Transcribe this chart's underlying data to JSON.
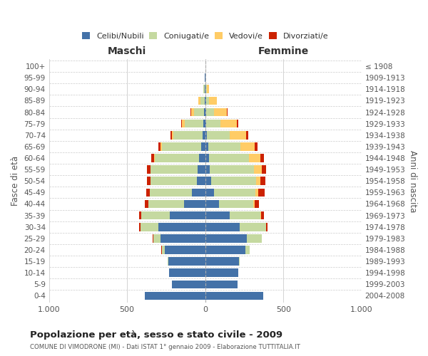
{
  "age_groups": [
    "100+",
    "95-99",
    "90-94",
    "85-89",
    "80-84",
    "75-79",
    "70-74",
    "65-69",
    "60-64",
    "55-59",
    "50-54",
    "45-49",
    "40-44",
    "35-39",
    "30-34",
    "25-29",
    "20-24",
    "15-19",
    "10-14",
    "5-9",
    "0-4"
  ],
  "birth_years": [
    "≤ 1908",
    "1909-1913",
    "1914-1918",
    "1919-1923",
    "1924-1928",
    "1929-1933",
    "1934-1938",
    "1939-1943",
    "1944-1948",
    "1949-1953",
    "1954-1958",
    "1959-1963",
    "1964-1968",
    "1969-1973",
    "1974-1978",
    "1979-1983",
    "1984-1988",
    "1989-1993",
    "1994-1998",
    "1999-2003",
    "2004-2008"
  ],
  "males": {
    "celibi": [
      0,
      1,
      3,
      5,
      10,
      12,
      18,
      28,
      38,
      48,
      55,
      85,
      135,
      225,
      300,
      285,
      260,
      235,
      230,
      215,
      385
    ],
    "coniugati": [
      0,
      1,
      8,
      25,
      60,
      120,
      185,
      250,
      285,
      300,
      295,
      270,
      230,
      185,
      115,
      48,
      18,
      5,
      2,
      0,
      0
    ],
    "vedovi": [
      0,
      0,
      3,
      12,
      20,
      18,
      12,
      8,
      6,
      4,
      2,
      2,
      1,
      0,
      0,
      0,
      0,
      0,
      0,
      0,
      0
    ],
    "divorziati": [
      0,
      0,
      0,
      2,
      3,
      4,
      7,
      14,
      18,
      22,
      22,
      22,
      22,
      13,
      7,
      3,
      2,
      0,
      0,
      0,
      0
    ]
  },
  "females": {
    "nubili": [
      0,
      0,
      2,
      4,
      5,
      8,
      12,
      18,
      24,
      30,
      40,
      58,
      88,
      155,
      220,
      265,
      255,
      215,
      210,
      205,
      370
    ],
    "coniugate": [
      0,
      1,
      7,
      22,
      50,
      90,
      145,
      205,
      255,
      280,
      285,
      265,
      220,
      200,
      168,
      95,
      28,
      5,
      2,
      0,
      0
    ],
    "vedove": [
      0,
      2,
      14,
      48,
      85,
      105,
      105,
      95,
      75,
      50,
      28,
      18,
      9,
      4,
      2,
      0,
      0,
      0,
      0,
      0,
      0
    ],
    "divorziate": [
      0,
      0,
      0,
      2,
      5,
      7,
      13,
      18,
      23,
      28,
      32,
      38,
      28,
      18,
      9,
      3,
      2,
      0,
      0,
      0,
      0
    ]
  },
  "color_celibi": "#4472A8",
  "color_coniugati": "#C5D9A0",
  "color_vedovi": "#FFCC66",
  "color_divorziati": "#CC2200",
  "xlim": 1000,
  "title": "Popolazione per età, sesso e stato civile - 2009",
  "subtitle": "COMUNE DI VIMODRONE (MI) - Dati ISTAT 1° gennaio 2009 - Elaborazione TUTTITALIA.IT",
  "ylabel_left": "Fasce di età",
  "ylabel_right": "Anni di nascita",
  "xlabel_left": "Maschi",
  "xlabel_right": "Femmine",
  "background_color": "#ffffff",
  "grid_color": "#cccccc"
}
